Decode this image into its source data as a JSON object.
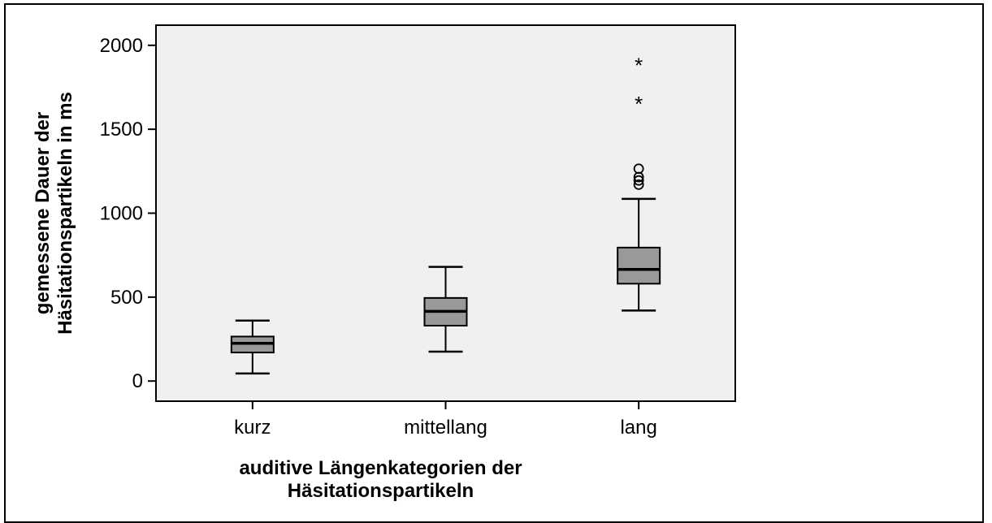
{
  "chart_data": {
    "type": "box",
    "title": "",
    "xlabel_lines": [
      "auditive Längenkategorien der",
      "Häsitationspartikeln"
    ],
    "ylabel_lines": [
      "gemessene Dauer der",
      "Häsitationspartikeln in ms"
    ],
    "ylim": [
      -120,
      2120
    ],
    "yticks": [
      0,
      500,
      1000,
      1500,
      2000
    ],
    "grid": false,
    "plot_background": "#f0f0f0",
    "box_color": "#999999",
    "categories": [
      "kurz",
      "mittellang",
      "lang"
    ],
    "boxes": [
      {
        "category": "kurz",
        "whisker_low": 45,
        "q1": 170,
        "median": 225,
        "q3": 265,
        "whisker_high": 360,
        "outliers": [],
        "extremes": []
      },
      {
        "category": "mittellang",
        "whisker_low": 175,
        "q1": 330,
        "median": 415,
        "q3": 495,
        "whisker_high": 680,
        "outliers": [],
        "extremes": []
      },
      {
        "category": "lang",
        "whisker_low": 420,
        "q1": 580,
        "median": 665,
        "q3": 795,
        "whisker_high": 1085,
        "outliers": [
          1170,
          1195,
          1215,
          1265
        ],
        "extremes": [
          1665,
          1895
        ]
      }
    ]
  }
}
